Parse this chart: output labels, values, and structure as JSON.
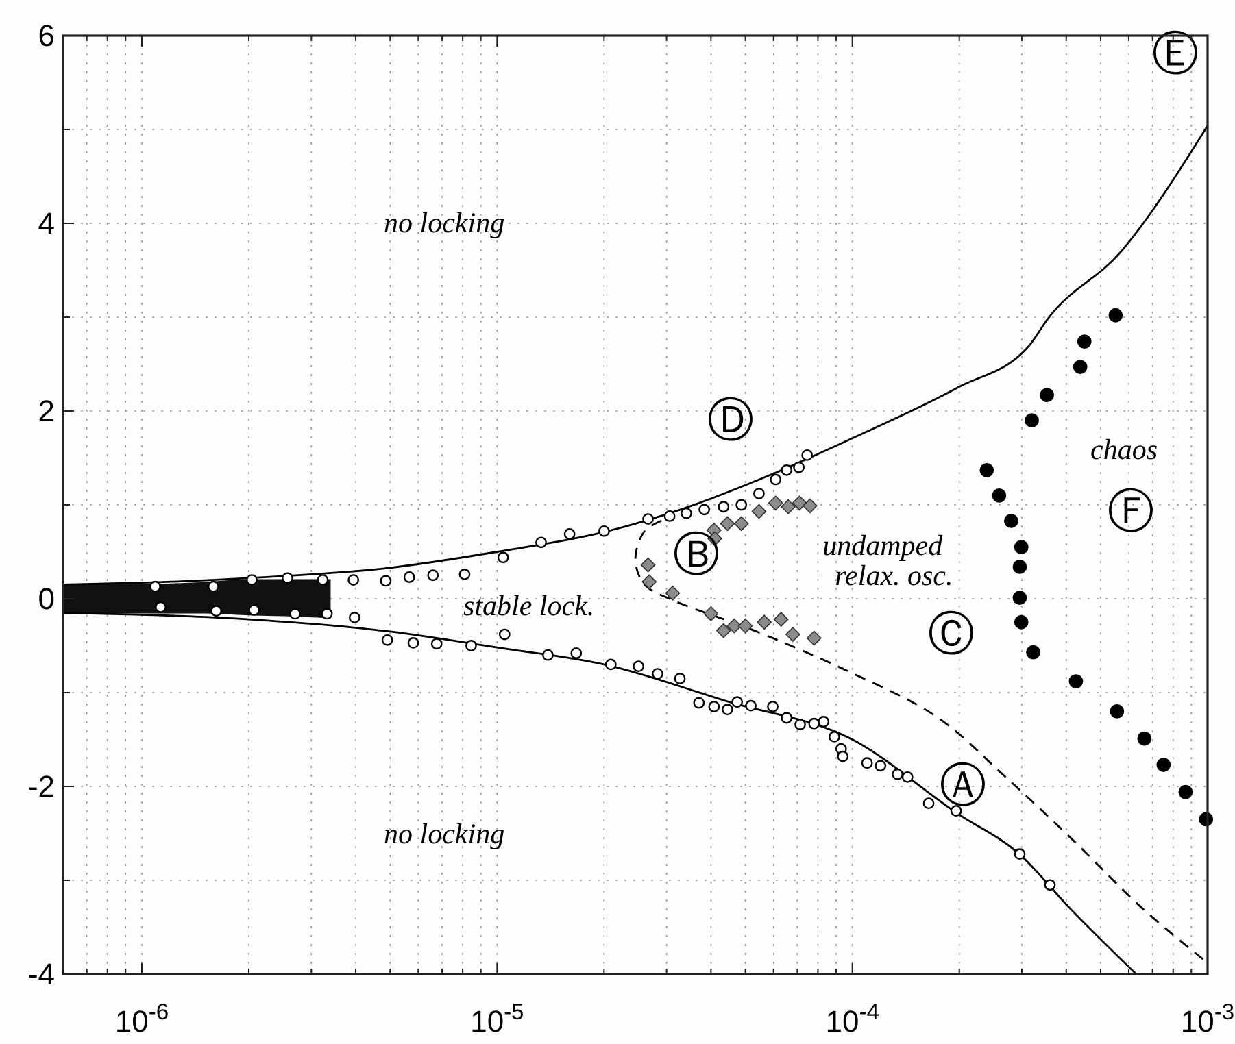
{
  "chart_data": {
    "type": "scatter",
    "xlim": [
      6e-07,
      0.001
    ],
    "ylim": [
      -4,
      6
    ],
    "log": "x",
    "grid": true,
    "xticks": [
      {
        "value": 7e-07,
        "label": null
      },
      {
        "value": 8e-07,
        "label": null
      },
      {
        "value": 9e-07,
        "label": null
      },
      {
        "value": 1e-06,
        "label": "10$^{-6}$"
      },
      {
        "value": 2e-06,
        "label": null
      },
      {
        "value": 3e-06,
        "label": null
      },
      {
        "value": 4e-06,
        "label": null
      },
      {
        "value": 5e-06,
        "label": null
      },
      {
        "value": 6e-06,
        "label": null
      },
      {
        "value": 7e-06,
        "label": null
      },
      {
        "value": 8e-06,
        "label": null
      },
      {
        "value": 9e-06,
        "label": null
      },
      {
        "value": 1e-05,
        "label": "10$^{-5}$"
      },
      {
        "value": 2e-05,
        "label": null
      },
      {
        "value": 3e-05,
        "label": null
      },
      {
        "value": 4e-05,
        "label": null
      },
      {
        "value": 5e-05,
        "label": null
      },
      {
        "value": 6e-05,
        "label": null
      },
      {
        "value": 7e-05,
        "label": null
      },
      {
        "value": 8e-05,
        "label": null
      },
      {
        "value": 9e-05,
        "label": null
      },
      {
        "value": 0.0001,
        "label": "10$^{-4}$"
      },
      {
        "value": 0.0002,
        "label": null
      },
      {
        "value": 0.0003,
        "label": null
      },
      {
        "value": 0.0004,
        "label": null
      },
      {
        "value": 0.0005,
        "label": null
      },
      {
        "value": 0.0006,
        "label": null
      },
      {
        "value": 0.0007,
        "label": null
      },
      {
        "value": 0.0008,
        "label": null
      },
      {
        "value": 0.0009,
        "label": null
      },
      {
        "value": 0.001,
        "label": "10$^{-3}$"
      }
    ],
    "yticks": [
      -4,
      {
        "value": -3,
        "label": null
      },
      -2,
      {
        "value": -1,
        "label": null
      },
      0,
      {
        "value": 1,
        "label": null
      },
      2,
      {
        "value": 3,
        "label": null
      },
      4,
      {
        "value": 5,
        "label": null
      },
      6
    ],
    "series": [
      {
        "type": "area",
        "color": "#111111",
        "x": [
          6e-07,
          1e-06,
          1.5e-06,
          2e-06,
          2.6e-06,
          3.4e-06
        ],
        "values": [
          0.15,
          0.15,
          0.17,
          0.2,
          0.2,
          0.2
        ]
      },
      {
        "type": "area",
        "color": "#111111",
        "x": [
          6e-07,
          1e-06,
          1.5e-06,
          2e-06,
          2.6e-06,
          3.4e-06
        ],
        "values": [
          -0.15,
          -0.15,
          -0.15,
          -0.17,
          -0.18,
          -0.2
        ]
      },
      {
        "type": "line",
        "color": "#000000",
        "line_style": "solid",
        "marker": "none",
        "x": [
          6e-07,
          1e-06,
          2e-06,
          5e-06,
          1e-05,
          2e-05,
          3e-05,
          5.8e-05,
          0.0001,
          0.000198,
          0.000315,
          0.000353,
          0.000571,
          0.001
        ],
        "values": [
          0.15,
          0.17,
          0.22,
          0.33,
          0.5,
          0.71,
          0.9,
          1.31,
          1.71,
          2.25,
          2.7,
          2.97,
          3.7,
          5.04
        ]
      },
      {
        "type": "line",
        "color": "#000000",
        "line_style": "solid",
        "marker": "none",
        "x": [
          6e-07,
          1e-06,
          2e-06,
          5e-06,
          1e-05,
          2e-05,
          4.5e-05,
          0.0001,
          0.000196,
          0.000295,
          0.00041,
          0.00063
        ],
        "values": [
          -0.15,
          -0.17,
          -0.22,
          -0.35,
          -0.52,
          -0.7,
          -1.1,
          -1.5,
          -2.28,
          -2.72,
          -3.3,
          -4.0
        ]
      },
      {
        "type": "line",
        "color": "#000000",
        "line_style": "dashed",
        "marker": "none",
        "x": [
          2.9e-05,
          2.6e-05,
          2.45e-05,
          2.6e-05,
          3.1e-05,
          5.3e-05,
          9.7e-05,
          0.000173,
          0.00027,
          0.00042,
          0.00066,
          0.001
        ],
        "values": [
          0.83,
          0.72,
          0.42,
          0.15,
          -0.01,
          -0.34,
          -0.77,
          -1.26,
          -1.9,
          -2.58,
          -3.31,
          -3.88
        ]
      },
      {
        "color": "#ffffff",
        "marker": "circle",
        "x": [
          1.09e-06,
          1.59e-06,
          2.04e-06,
          2.57e-06,
          3.23e-06,
          3.94e-06,
          4.86e-06,
          5.66e-06,
          6.6e-06,
          8.1e-06,
          1.04e-05,
          1.33e-05,
          1.6e-05,
          2e-05,
          2.66e-05,
          3.06e-05,
          3.41e-05,
          3.83e-05,
          4.34e-05,
          4.87e-05,
          5.46e-05,
          6.08e-05,
          6.53e-05,
          7.07e-05,
          7.46e-05,
          1.13e-06,
          1.62e-06,
          2.07e-06,
          2.7e-06,
          3.32e-06,
          3.97e-06,
          4.91e-06,
          5.81e-06,
          6.76e-06,
          8.45e-06,
          1.05e-05,
          1.39e-05,
          1.67e-05,
          2.09e-05,
          2.5e-05,
          2.83e-05,
          3.27e-05,
          3.7e-05,
          4.08e-05,
          4.45e-05,
          4.74e-05,
          5.18e-05,
          5.97e-05,
          6.53e-05,
          7.13e-05,
          7.8e-05,
          8.3e-05,
          8.9e-05,
          9.3e-05,
          9.4e-05,
          0.00011,
          0.00012,
          0.000134,
          0.000143,
          0.000164,
          0.000196,
          0.000296,
          0.00036
        ],
        "values": [
          0.13,
          0.13,
          0.2,
          0.22,
          0.2,
          0.2,
          0.19,
          0.23,
          0.25,
          0.26,
          0.44,
          0.6,
          0.69,
          0.72,
          0.85,
          0.88,
          0.91,
          0.95,
          0.98,
          1.0,
          1.12,
          1.27,
          1.37,
          1.4,
          1.53,
          -0.09,
          -0.13,
          -0.12,
          -0.16,
          -0.16,
          -0.2,
          -0.44,
          -0.47,
          -0.48,
          -0.5,
          -0.38,
          -0.6,
          -0.58,
          -0.7,
          -0.72,
          -0.8,
          -0.85,
          -1.11,
          -1.15,
          -1.18,
          -1.1,
          -1.14,
          -1.15,
          -1.27,
          -1.34,
          -1.33,
          -1.31,
          -1.47,
          -1.6,
          -1.68,
          -1.75,
          -1.78,
          -1.87,
          -1.9,
          -2.18,
          -2.26,
          -2.72,
          -3.05
        ]
      },
      {
        "color": "#8c8c8c",
        "marker": "diamond",
        "x": [
          2.66e-05,
          2.68e-05,
          3.12e-05,
          4e-05,
          4.08e-05,
          4.1e-05,
          4.34e-05,
          4.45e-05,
          4.65e-05,
          4.87e-05,
          5e-05,
          5.46e-05,
          5.65e-05,
          6.08e-05,
          6.3e-05,
          6.6e-05,
          6.8e-05,
          7.1e-05,
          7.6e-05,
          7.8e-05
        ],
        "values": [
          0.36,
          0.18,
          0.06,
          -0.16,
          0.73,
          0.64,
          -0.34,
          0.8,
          -0.29,
          0.8,
          -0.29,
          0.93,
          -0.25,
          1.02,
          -0.22,
          0.98,
          -0.38,
          1.02,
          0.99,
          -0.42
        ]
      },
      {
        "color": "#000000",
        "marker": "circle",
        "x": [
          0.000239,
          0.000259,
          0.00028,
          0.00032,
          0.000353,
          0.000438,
          0.00045,
          0.000551,
          0.000299,
          0.000296,
          0.000296,
          0.000299,
          0.000323,
          0.000426,
          0.000556,
          0.000664,
          0.000752,
          0.000867,
          0.00099
        ],
        "values": [
          1.37,
          1.1,
          0.83,
          1.9,
          2.17,
          2.47,
          2.74,
          3.02,
          0.55,
          0.34,
          0.01,
          -0.25,
          -0.57,
          -0.88,
          -1.2,
          -1.49,
          -1.77,
          -2.06,
          -2.35
        ]
      }
    ],
    "annotations": [
      "no locking",
      "no locking",
      "stable lock.",
      "undamped",
      "relax. osc.",
      "chaos",
      "Ⓐ",
      "Ⓑ",
      "Ⓒ",
      "Ⓓ",
      "Ⓔ",
      "Ⓕ"
    ]
  }
}
